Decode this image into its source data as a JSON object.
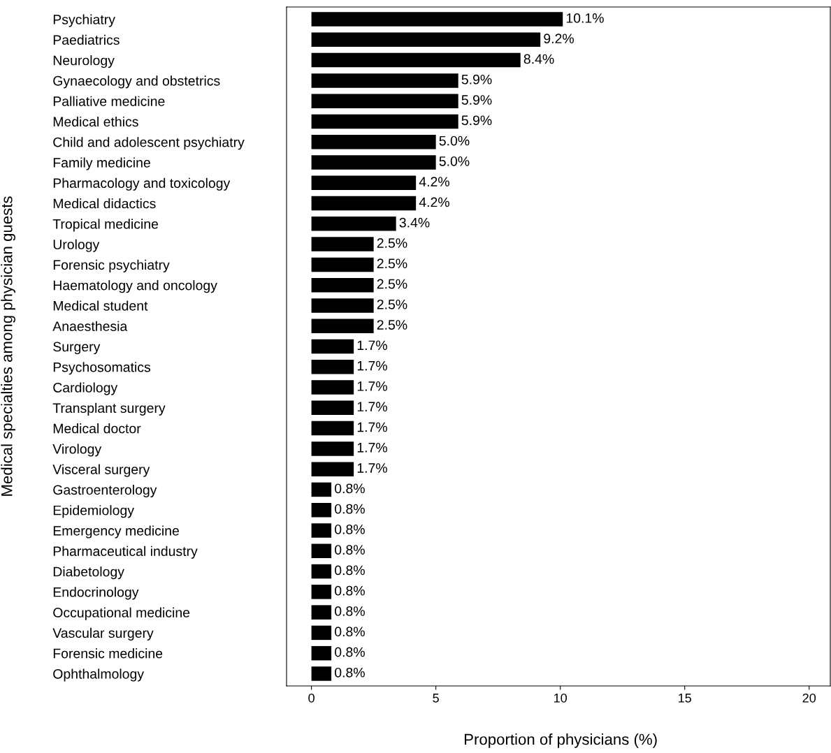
{
  "chart_data": {
    "type": "bar",
    "orientation": "horizontal",
    "ylabel": "Medical specialties among physician guests",
    "xlabel": "Proportion of physicians (%)",
    "categories": [
      "Psychiatry",
      "Paediatrics",
      "Neurology",
      "Gynaecology and obstetrics",
      "Palliative medicine",
      "Medical ethics",
      "Child and adolescent psychiatry",
      "Family medicine",
      "Pharmacology and toxicology",
      "Medical didactics",
      "Tropical medicine",
      "Urology",
      "Forensic psychiatry",
      "Haematology and oncology",
      "Medical student",
      "Anaesthesia",
      "Surgery",
      "Psychosomatics",
      "Cardiology",
      "Transplant surgery",
      "Medical doctor",
      "Virology",
      "Visceral surgery",
      "Gastroenterology",
      "Epidemiology",
      "Emergency medicine",
      "Pharmaceutical industry",
      "Diabetology",
      "Endocrinology",
      "Occupational medicine",
      "Vascular surgery",
      "Forensic medicine",
      "Ophthalmology"
    ],
    "values": [
      10.1,
      9.2,
      8.4,
      5.9,
      5.9,
      5.9,
      5.0,
      5.0,
      4.2,
      4.2,
      3.4,
      2.5,
      2.5,
      2.5,
      2.5,
      2.5,
      1.7,
      1.7,
      1.7,
      1.7,
      1.7,
      1.7,
      1.7,
      0.8,
      0.8,
      0.8,
      0.8,
      0.8,
      0.8,
      0.8,
      0.8,
      0.8,
      0.8
    ],
    "value_labels": [
      "10.1%",
      "9.2%",
      "8.4%",
      "5.9%",
      "5.9%",
      "5.9%",
      "5.0%",
      "5.0%",
      "4.2%",
      "4.2%",
      "3.4%",
      "2.5%",
      "2.5%",
      "2.5%",
      "2.5%",
      "2.5%",
      "1.7%",
      "1.7%",
      "1.7%",
      "1.7%",
      "1.7%",
      "1.7%",
      "1.7%",
      "0.8%",
      "0.8%",
      "0.8%",
      "0.8%",
      "0.8%",
      "0.8%",
      "0.8%",
      "0.8%",
      "0.8%",
      "0.8%"
    ],
    "color": "#000000",
    "xlim": [
      -1,
      20.85
    ],
    "xticks": [
      0,
      5,
      10,
      15,
      20
    ],
    "grid": false,
    "legend": false
  }
}
